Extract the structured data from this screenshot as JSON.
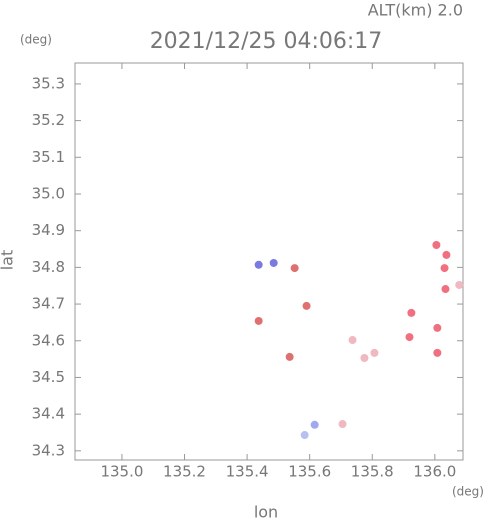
{
  "chart_data": {
    "type": "scatter",
    "title": "2021/12/25 04:06:17",
    "subtitle": "ALT(km) 2.0",
    "x_label": "lon",
    "y_label": "lat",
    "x_unit": "(deg)",
    "y_unit": "(deg)",
    "xlim": [
      134.85,
      136.09
    ],
    "ylim": [
      34.275,
      35.357
    ],
    "xticks": [
      {
        "value": 135.0,
        "label": "135.0"
      },
      135.2,
      135.4,
      135.6,
      135.8,
      {
        "value": 136.0,
        "label": "136.0"
      }
    ],
    "yticks": [
      35.3,
      35.2,
      35.1,
      {
        "value": 35.0,
        "label": "35.0"
      },
      34.9,
      34.8,
      34.7,
      34.6,
      34.5,
      34.4,
      34.3
    ],
    "x": [
      135.437,
      135.485,
      135.552,
      135.437,
      135.59,
      135.536,
      135.737,
      135.775,
      135.807,
      135.705,
      135.584,
      135.616,
      135.925,
      135.919,
      136.008,
      136.008,
      136.005,
      136.031,
      136.034,
      136.078,
      136.037
    ],
    "y": [
      34.807,
      34.812,
      34.798,
      34.654,
      34.695,
      34.556,
      34.602,
      34.553,
      34.567,
      34.373,
      34.343,
      34.371,
      34.676,
      34.61,
      34.635,
      34.567,
      34.861,
      34.798,
      34.741,
      34.752,
      34.834
    ],
    "colors": [
      "#7a7ae0",
      "#7a7ae0",
      "#e07070",
      "#e07070",
      "#e07070",
      "#e07070",
      "#f0b8c0",
      "#f0b8c0",
      "#f0b8c0",
      "#f0b8c0",
      "#b8c0f0",
      "#a0a8f0",
      "#f07080",
      "#f07080",
      "#f07080",
      "#f07080",
      "#f07080",
      "#f07080",
      "#f07080",
      "#f0b8c0",
      "#f07080"
    ]
  }
}
